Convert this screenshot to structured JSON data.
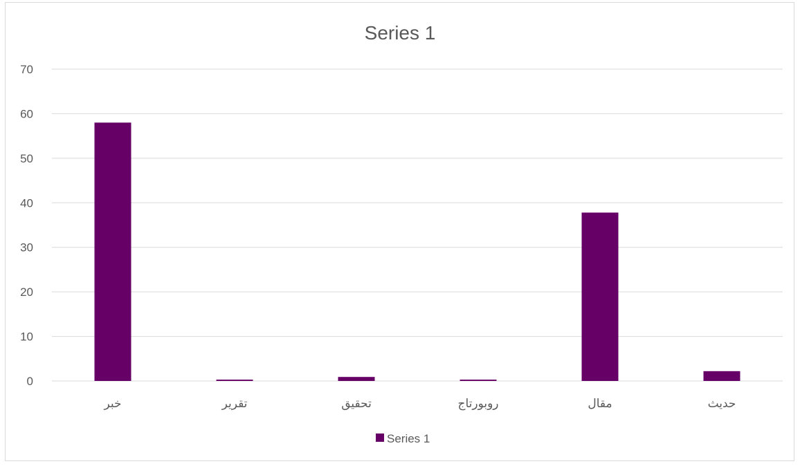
{
  "chart_data": {
    "type": "bar",
    "title": "Series 1",
    "xlabel": "",
    "ylabel": "",
    "categories": [
      "خبر",
      "تقرير",
      "تحقيق",
      "روبورتاج",
      "مقال",
      "حديث"
    ],
    "series": [
      {
        "name": "Series 1",
        "values": [
          58,
          0.3,
          0.9,
          0.3,
          37.8,
          2.2
        ],
        "color": "#660066"
      }
    ],
    "ylim": [
      0,
      70
    ],
    "yticks": [
      0,
      10,
      20,
      30,
      40,
      50,
      60,
      70
    ],
    "grid": true,
    "legend_position": "bottom"
  }
}
